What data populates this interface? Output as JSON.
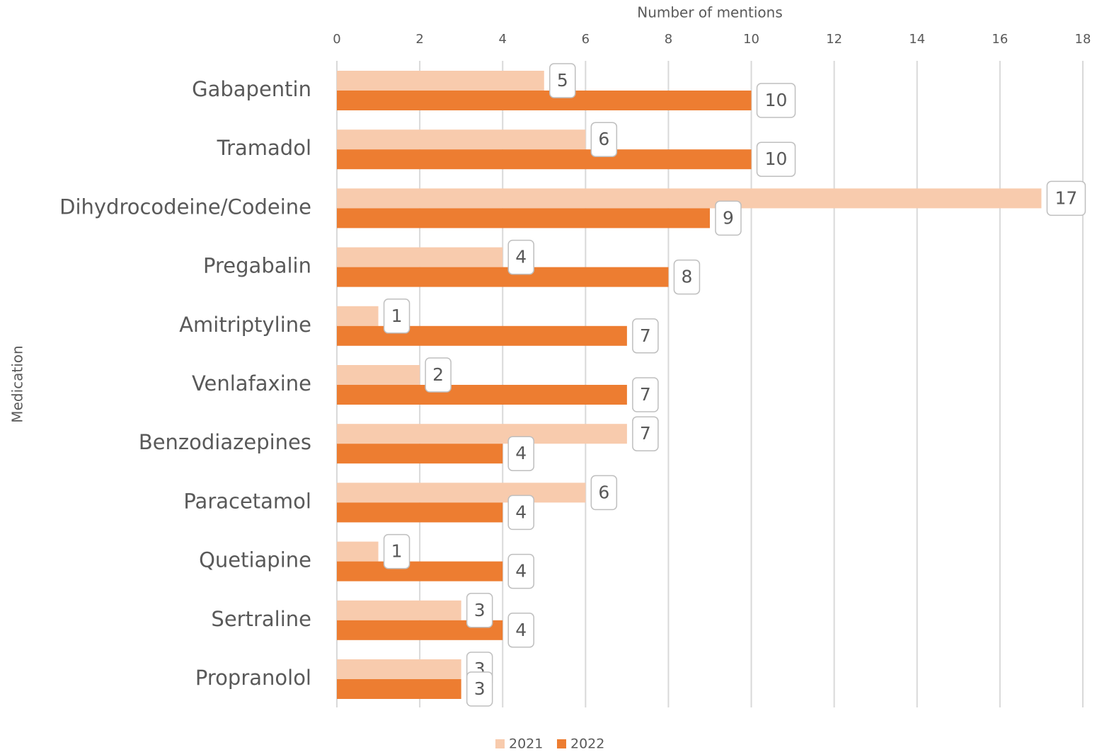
{
  "chart_data": {
    "type": "bar",
    "orientation": "horizontal",
    "x_label": "Number of mentions",
    "y_label": "Medication",
    "categories": [
      "Gabapentin",
      "Tramadol",
      "Dihydrocodeine/Codeine",
      "Pregabalin",
      "Amitriptyline",
      "Venlafaxine",
      "Benzodiazepines",
      "Paracetamol",
      "Quetiapine",
      "Sertraline",
      "Propranolol"
    ],
    "series": [
      {
        "name": "2021",
        "color": "#f8cbad",
        "values": [
          5,
          6,
          17,
          4,
          1,
          2,
          7,
          6,
          1,
          3,
          3
        ]
      },
      {
        "name": "2022",
        "color": "#ed7d31",
        "values": [
          10,
          10,
          9,
          8,
          7,
          7,
          4,
          4,
          4,
          4,
          3
        ]
      }
    ],
    "xlim": [
      0,
      18
    ],
    "xticks": [
      0,
      2,
      4,
      6,
      8,
      10,
      12,
      14,
      16,
      18
    ],
    "grid": true,
    "legend": "bottom"
  }
}
